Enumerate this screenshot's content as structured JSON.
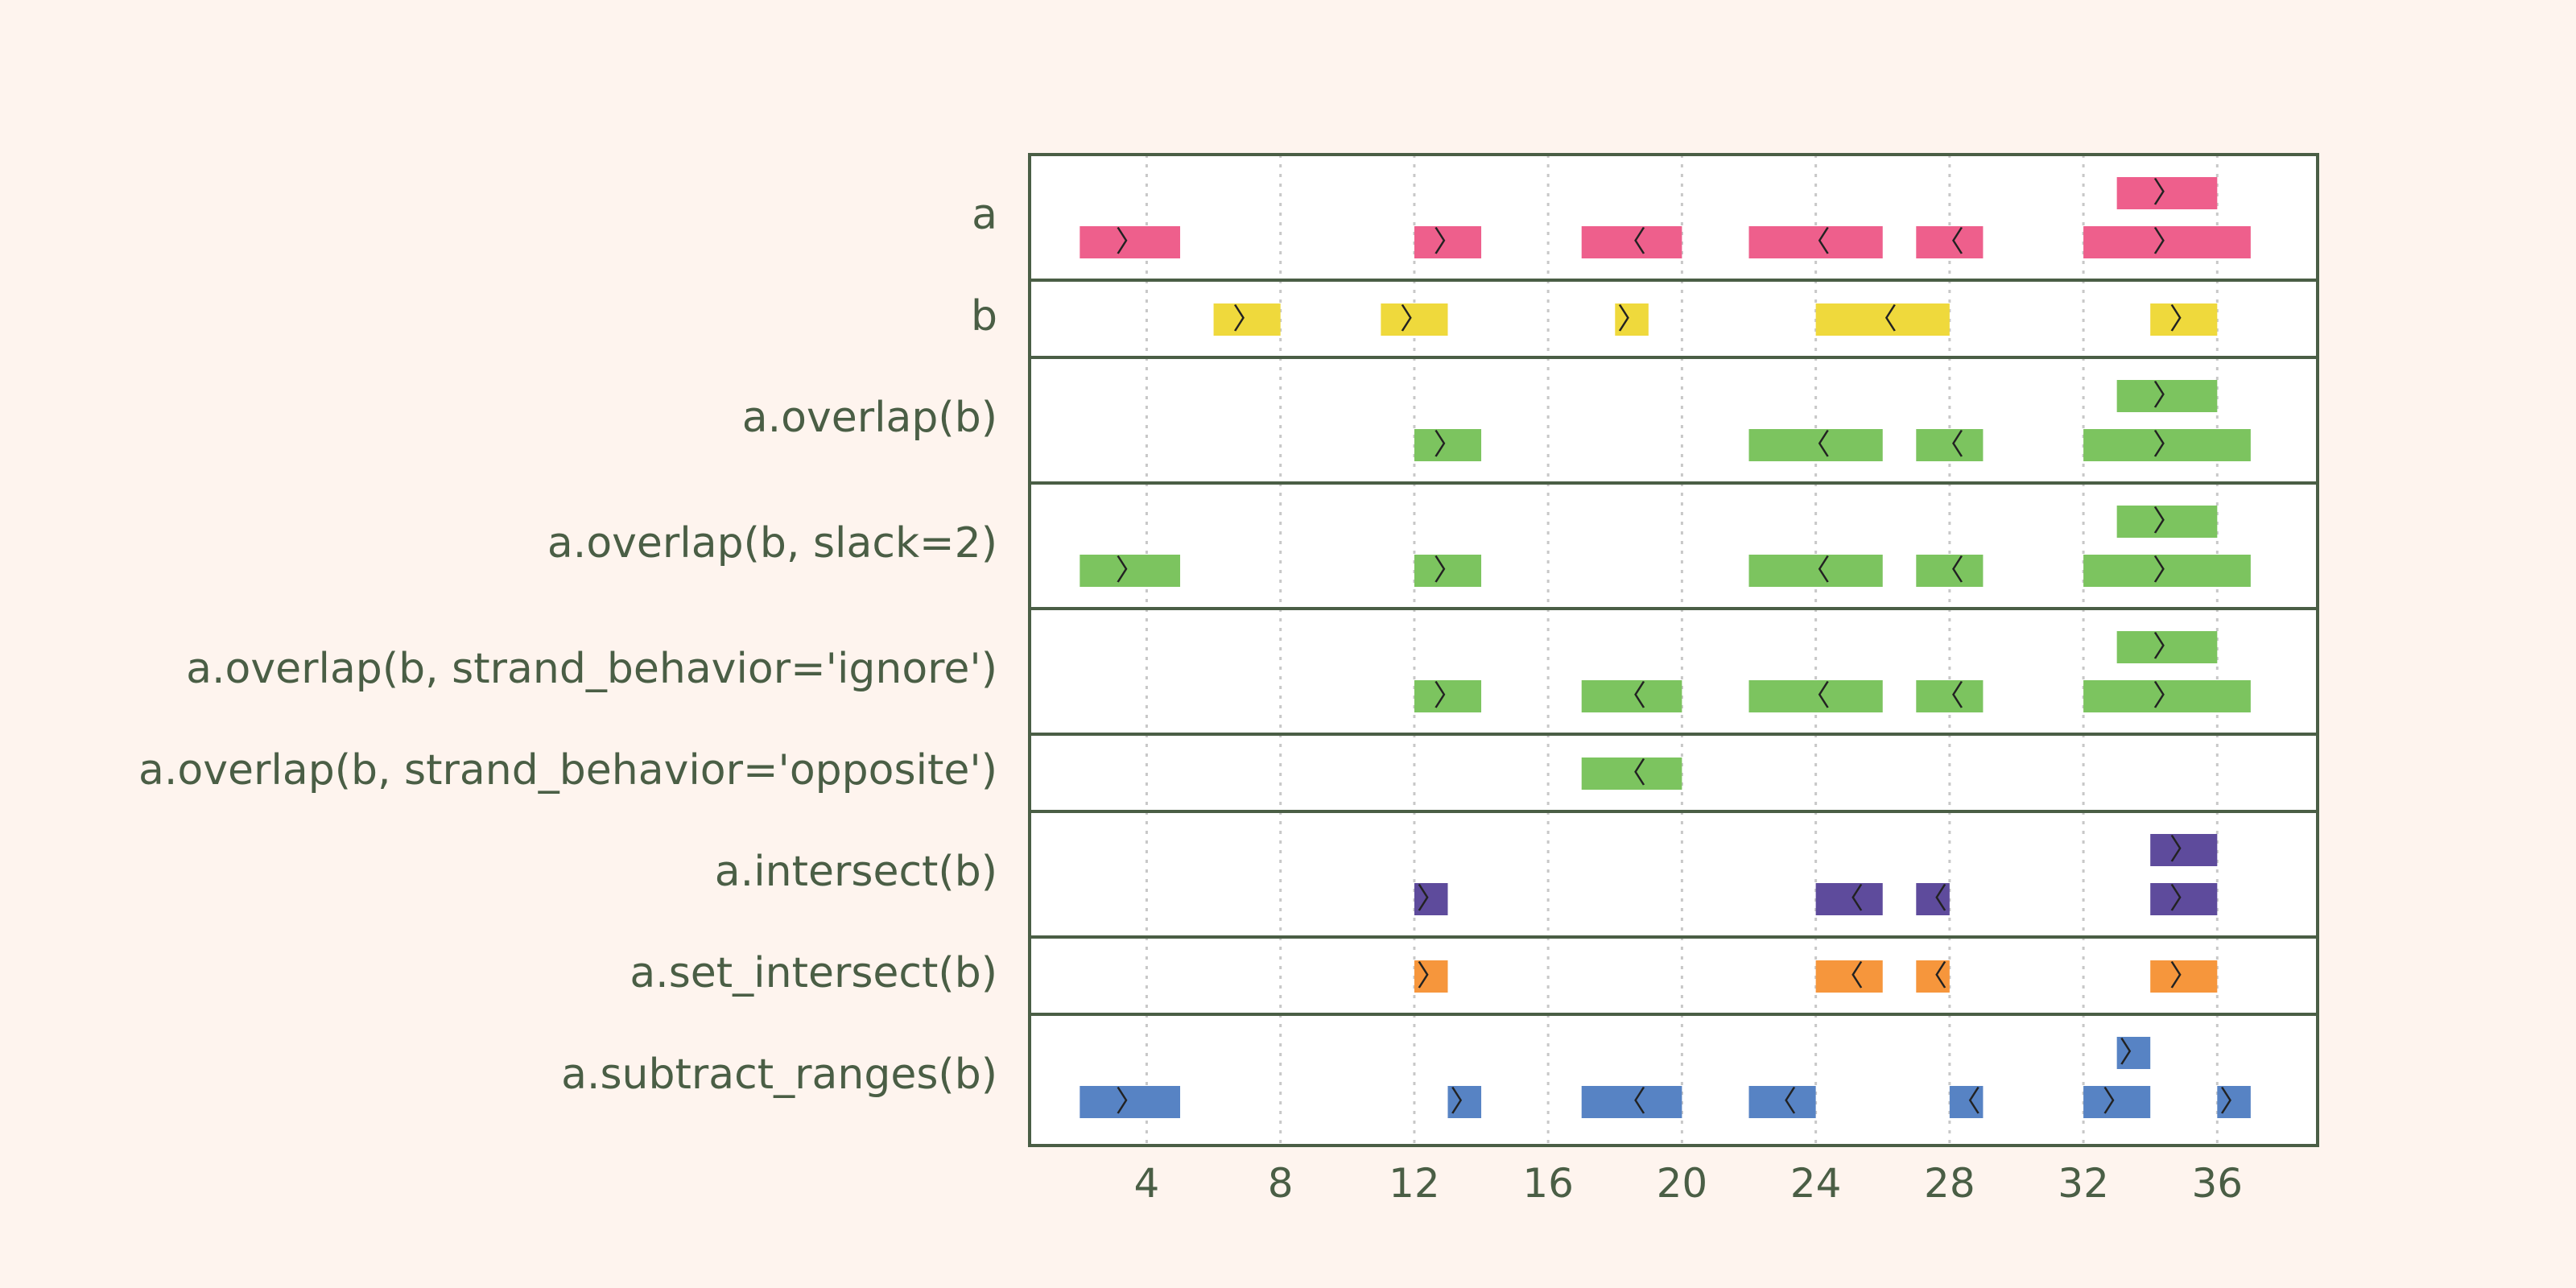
{
  "colors": {
    "background": "#fef4ee",
    "frame": "#4a5e45",
    "text": "#4a5e45",
    "grid": "#c8c8c8",
    "a": "#ee5f8c",
    "b": "#efd93c",
    "overlap": "#7cc45f",
    "intersect": "#5e4b9c",
    "set_intersect": "#f6963c",
    "subtract": "#5783c4"
  },
  "chart_data": {
    "type": "interval-track",
    "xlim": [
      0.5,
      39
    ],
    "xticks": [
      4,
      8,
      12,
      16,
      20,
      24,
      28,
      32,
      36
    ],
    "grid": "vertical dotted at x ticks",
    "strand_symbols": {
      "+": "〉",
      "-": "〈"
    },
    "rows": [
      {
        "label": "a",
        "color_key": "a",
        "intervals": [
          {
            "start": 2,
            "end": 5,
            "strand": "+",
            "level": 0
          },
          {
            "start": 12,
            "end": 14,
            "strand": "+",
            "level": 0
          },
          {
            "start": 17,
            "end": 20,
            "strand": "-",
            "level": 0
          },
          {
            "start": 22,
            "end": 26,
            "strand": "-",
            "level": 0
          },
          {
            "start": 27,
            "end": 29,
            "strand": "-",
            "level": 0
          },
          {
            "start": 32,
            "end": 37,
            "strand": "+",
            "level": 0
          },
          {
            "start": 33,
            "end": 36,
            "strand": "+",
            "level": 1
          }
        ]
      },
      {
        "label": "b",
        "color_key": "b",
        "intervals": [
          {
            "start": 6,
            "end": 8,
            "strand": "+",
            "level": 0
          },
          {
            "start": 11,
            "end": 13,
            "strand": "+",
            "level": 0
          },
          {
            "start": 18,
            "end": 19,
            "strand": "+",
            "level": 0
          },
          {
            "start": 24,
            "end": 28,
            "strand": "-",
            "level": 0
          },
          {
            "start": 34,
            "end": 36,
            "strand": "+",
            "level": 0
          }
        ]
      },
      {
        "label": "a.overlap(b)",
        "color_key": "overlap",
        "intervals": [
          {
            "start": 12,
            "end": 14,
            "strand": "+",
            "level": 0
          },
          {
            "start": 22,
            "end": 26,
            "strand": "-",
            "level": 0
          },
          {
            "start": 27,
            "end": 29,
            "strand": "-",
            "level": 0
          },
          {
            "start": 32,
            "end": 37,
            "strand": "+",
            "level": 0
          },
          {
            "start": 33,
            "end": 36,
            "strand": "+",
            "level": 1
          }
        ]
      },
      {
        "label": "a.overlap(b, slack=2)",
        "color_key": "overlap",
        "intervals": [
          {
            "start": 2,
            "end": 5,
            "strand": "+",
            "level": 0
          },
          {
            "start": 12,
            "end": 14,
            "strand": "+",
            "level": 0
          },
          {
            "start": 22,
            "end": 26,
            "strand": "-",
            "level": 0
          },
          {
            "start": 27,
            "end": 29,
            "strand": "-",
            "level": 0
          },
          {
            "start": 32,
            "end": 37,
            "strand": "+",
            "level": 0
          },
          {
            "start": 33,
            "end": 36,
            "strand": "+",
            "level": 1
          }
        ]
      },
      {
        "label": "a.overlap(b, strand_behavior='ignore')",
        "color_key": "overlap",
        "intervals": [
          {
            "start": 12,
            "end": 14,
            "strand": "+",
            "level": 0
          },
          {
            "start": 17,
            "end": 20,
            "strand": "-",
            "level": 0
          },
          {
            "start": 22,
            "end": 26,
            "strand": "-",
            "level": 0
          },
          {
            "start": 27,
            "end": 29,
            "strand": "-",
            "level": 0
          },
          {
            "start": 32,
            "end": 37,
            "strand": "+",
            "level": 0
          },
          {
            "start": 33,
            "end": 36,
            "strand": "+",
            "level": 1
          }
        ]
      },
      {
        "label": "a.overlap(b, strand_behavior='opposite')",
        "color_key": "overlap",
        "intervals": [
          {
            "start": 17,
            "end": 20,
            "strand": "-",
            "level": 0
          }
        ]
      },
      {
        "label": "a.intersect(b)",
        "color_key": "intersect",
        "intervals": [
          {
            "start": 12,
            "end": 13,
            "strand": "+",
            "level": 0
          },
          {
            "start": 24,
            "end": 26,
            "strand": "-",
            "level": 0
          },
          {
            "start": 27,
            "end": 28,
            "strand": "-",
            "level": 0
          },
          {
            "start": 34,
            "end": 36,
            "strand": "+",
            "level": 0
          },
          {
            "start": 34,
            "end": 36,
            "strand": "+",
            "level": 1
          }
        ]
      },
      {
        "label": "a.set_intersect(b)",
        "color_key": "set_intersect",
        "intervals": [
          {
            "start": 12,
            "end": 13,
            "strand": "+",
            "level": 0
          },
          {
            "start": 24,
            "end": 26,
            "strand": "-",
            "level": 0
          },
          {
            "start": 27,
            "end": 28,
            "strand": "-",
            "level": 0
          },
          {
            "start": 34,
            "end": 36,
            "strand": "+",
            "level": 0
          }
        ]
      },
      {
        "label": "a.subtract_ranges(b)",
        "color_key": "subtract",
        "intervals": [
          {
            "start": 2,
            "end": 5,
            "strand": "+",
            "level": 0
          },
          {
            "start": 13,
            "end": 14,
            "strand": "+",
            "level": 0
          },
          {
            "start": 17,
            "end": 20,
            "strand": "-",
            "level": 0
          },
          {
            "start": 22,
            "end": 24,
            "strand": "-",
            "level": 0
          },
          {
            "start": 28,
            "end": 29,
            "strand": "-",
            "level": 0
          },
          {
            "start": 32,
            "end": 34,
            "strand": "+",
            "level": 0
          },
          {
            "start": 36,
            "end": 37,
            "strand": "+",
            "level": 0
          },
          {
            "start": 33,
            "end": 34,
            "strand": "+",
            "level": 1
          }
        ]
      }
    ]
  }
}
